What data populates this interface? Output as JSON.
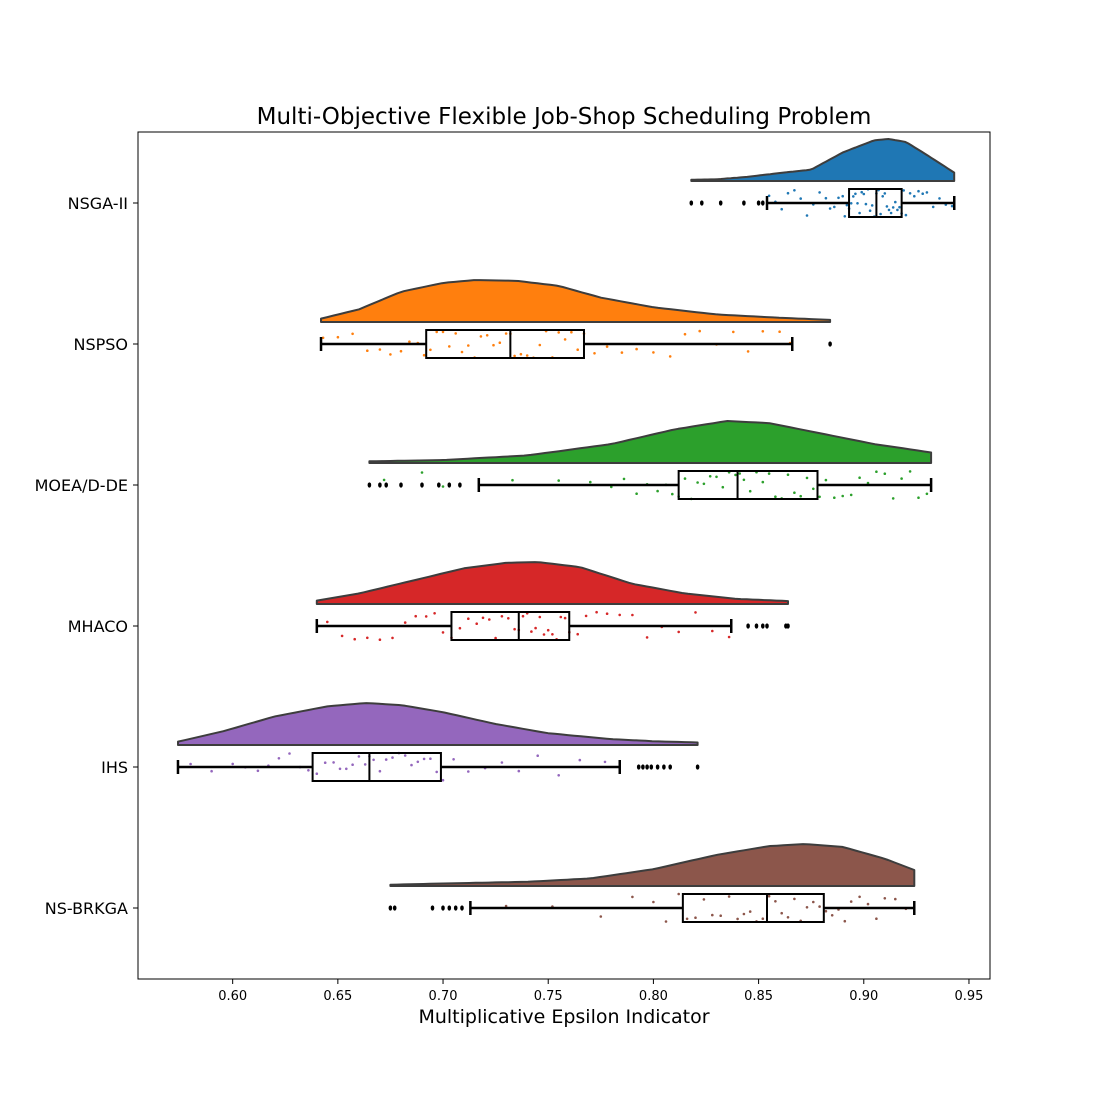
{
  "chart_data": {
    "type": "raincloud",
    "title": "Multi-Objective Flexible Job-Shop Scheduling Problem",
    "xlabel": "Multiplicative Epsilon Indicator",
    "ylabel": "",
    "xlim": [
      0.555,
      0.96
    ],
    "xticks": [
      0.6,
      0.65,
      0.7,
      0.75,
      0.8,
      0.85,
      0.9,
      0.95
    ],
    "xtick_labels": [
      "0.60",
      "0.65",
      "0.70",
      "0.75",
      "0.80",
      "0.85",
      "0.90",
      "0.95"
    ],
    "legend": "none",
    "grid": false,
    "series": [
      {
        "name": "NSGA-II",
        "color": "#1f77b4",
        "box": {
          "whislo": 0.854,
          "q1": 0.893,
          "median": 0.906,
          "q3": 0.918,
          "whishi": 0.943
        },
        "outliers": [
          0.818,
          0.823,
          0.832,
          0.843,
          0.85,
          0.852
        ],
        "kde": {
          "min": 0.818,
          "max": 0.943,
          "curve": [
            [
              0.818,
              0.03
            ],
            [
              0.83,
              0.04
            ],
            [
              0.845,
              0.1
            ],
            [
              0.86,
              0.19
            ],
            [
              0.875,
              0.27
            ],
            [
              0.89,
              0.68
            ],
            [
              0.905,
              0.97
            ],
            [
              0.912,
              1.0
            ],
            [
              0.92,
              0.93
            ],
            [
              0.93,
              0.62
            ],
            [
              0.943,
              0.2
            ]
          ]
        },
        "points": [
          0.855,
          0.858,
          0.861,
          0.864,
          0.867,
          0.87,
          0.873,
          0.876,
          0.879,
          0.882,
          0.884,
          0.886,
          0.888,
          0.89,
          0.891,
          0.892,
          0.893,
          0.894,
          0.895,
          0.896,
          0.897,
          0.898,
          0.899,
          0.9,
          0.901,
          0.902,
          0.903,
          0.904,
          0.905,
          0.906,
          0.906,
          0.907,
          0.908,
          0.909,
          0.91,
          0.911,
          0.912,
          0.913,
          0.914,
          0.915,
          0.916,
          0.917,
          0.918,
          0.919,
          0.92,
          0.922,
          0.924,
          0.926,
          0.928,
          0.93,
          0.933,
          0.936,
          0.939,
          0.942
        ]
      },
      {
        "name": "NSPSO",
        "color": "#ff7f0e",
        "box": {
          "whislo": 0.642,
          "q1": 0.692,
          "median": 0.732,
          "q3": 0.767,
          "whishi": 0.866
        },
        "outliers": [
          0.884
        ],
        "kde": {
          "min": 0.642,
          "max": 0.884,
          "curve": [
            [
              0.642,
              0.08
            ],
            [
              0.66,
              0.3
            ],
            [
              0.68,
              0.72
            ],
            [
              0.7,
              0.93
            ],
            [
              0.715,
              1.0
            ],
            [
              0.735,
              0.98
            ],
            [
              0.755,
              0.86
            ],
            [
              0.775,
              0.58
            ],
            [
              0.8,
              0.35
            ],
            [
              0.83,
              0.18
            ],
            [
              0.86,
              0.1
            ],
            [
              0.884,
              0.05
            ]
          ]
        },
        "points": [
          0.643,
          0.65,
          0.657,
          0.664,
          0.67,
          0.675,
          0.68,
          0.684,
          0.688,
          0.691,
          0.694,
          0.697,
          0.7,
          0.703,
          0.706,
          0.709,
          0.712,
          0.715,
          0.718,
          0.721,
          0.724,
          0.727,
          0.73,
          0.732,
          0.734,
          0.737,
          0.74,
          0.743,
          0.746,
          0.749,
          0.752,
          0.755,
          0.758,
          0.761,
          0.764,
          0.767,
          0.772,
          0.778,
          0.785,
          0.792,
          0.8,
          0.808,
          0.815,
          0.822,
          0.83,
          0.838,
          0.845,
          0.852,
          0.86,
          0.865
        ]
      },
      {
        "name": "MOEA/D-DE",
        "color": "#2ca02c",
        "box": {
          "whislo": 0.717,
          "q1": 0.812,
          "median": 0.84,
          "q3": 0.878,
          "whishi": 0.932
        },
        "outliers": [
          0.665,
          0.67,
          0.673,
          0.68,
          0.69,
          0.698,
          0.703,
          0.708
        ],
        "kde": {
          "min": 0.665,
          "max": 0.932,
          "curve": [
            [
              0.665,
              0.04
            ],
            [
              0.7,
              0.07
            ],
            [
              0.74,
              0.18
            ],
            [
              0.78,
              0.45
            ],
            [
              0.81,
              0.8
            ],
            [
              0.835,
              1.0
            ],
            [
              0.855,
              0.95
            ],
            [
              0.88,
              0.7
            ],
            [
              0.905,
              0.45
            ],
            [
              0.932,
              0.25
            ]
          ]
        },
        "points": [
          0.672,
          0.69,
          0.7,
          0.733,
          0.755,
          0.77,
          0.78,
          0.786,
          0.792,
          0.797,
          0.802,
          0.806,
          0.809,
          0.812,
          0.815,
          0.818,
          0.821,
          0.824,
          0.827,
          0.83,
          0.833,
          0.836,
          0.839,
          0.841,
          0.843,
          0.846,
          0.849,
          0.852,
          0.855,
          0.858,
          0.861,
          0.864,
          0.867,
          0.87,
          0.873,
          0.876,
          0.879,
          0.882,
          0.886,
          0.89,
          0.894,
          0.898,
          0.902,
          0.906,
          0.91,
          0.914,
          0.918,
          0.922,
          0.926,
          0.93
        ]
      },
      {
        "name": "MHACO",
        "color": "#d62728",
        "box": {
          "whislo": 0.64,
          "q1": 0.704,
          "median": 0.736,
          "q3": 0.76,
          "whishi": 0.837
        },
        "outliers": [
          0.845,
          0.849,
          0.852,
          0.854,
          0.863,
          0.864
        ],
        "kde": {
          "min": 0.64,
          "max": 0.864,
          "curve": [
            [
              0.64,
              0.08
            ],
            [
              0.66,
              0.25
            ],
            [
              0.685,
              0.55
            ],
            [
              0.71,
              0.85
            ],
            [
              0.73,
              0.98
            ],
            [
              0.745,
              1.0
            ],
            [
              0.765,
              0.88
            ],
            [
              0.79,
              0.48
            ],
            [
              0.815,
              0.25
            ],
            [
              0.84,
              0.12
            ],
            [
              0.864,
              0.07
            ]
          ]
        },
        "points": [
          0.645,
          0.652,
          0.658,
          0.664,
          0.67,
          0.676,
          0.682,
          0.687,
          0.692,
          0.696,
          0.7,
          0.704,
          0.708,
          0.712,
          0.716,
          0.719,
          0.722,
          0.725,
          0.728,
          0.731,
          0.734,
          0.736,
          0.738,
          0.74,
          0.742,
          0.744,
          0.746,
          0.748,
          0.75,
          0.752,
          0.754,
          0.756,
          0.758,
          0.76,
          0.764,
          0.768,
          0.773,
          0.778,
          0.784,
          0.79,
          0.797,
          0.804,
          0.812,
          0.82,
          0.828,
          0.836
        ]
      },
      {
        "name": "IHS",
        "color": "#9467bd",
        "box": {
          "whislo": 0.574,
          "q1": 0.638,
          "median": 0.665,
          "q3": 0.699,
          "whishi": 0.784
        },
        "outliers": [
          0.793,
          0.795,
          0.797,
          0.799,
          0.802,
          0.805,
          0.808,
          0.821
        ],
        "kde": {
          "min": 0.574,
          "max": 0.821,
          "curve": [
            [
              0.574,
              0.08
            ],
            [
              0.595,
              0.32
            ],
            [
              0.62,
              0.68
            ],
            [
              0.645,
              0.92
            ],
            [
              0.663,
              1.0
            ],
            [
              0.68,
              0.95
            ],
            [
              0.7,
              0.78
            ],
            [
              0.725,
              0.5
            ],
            [
              0.75,
              0.28
            ],
            [
              0.78,
              0.14
            ],
            [
              0.8,
              0.09
            ],
            [
              0.821,
              0.06
            ]
          ]
        },
        "points": [
          0.58,
          0.59,
          0.6,
          0.606,
          0.612,
          0.617,
          0.622,
          0.627,
          0.632,
          0.636,
          0.64,
          0.644,
          0.648,
          0.651,
          0.654,
          0.657,
          0.66,
          0.663,
          0.665,
          0.667,
          0.67,
          0.673,
          0.676,
          0.679,
          0.682,
          0.685,
          0.688,
          0.691,
          0.694,
          0.697,
          0.7,
          0.705,
          0.712,
          0.72,
          0.728,
          0.736,
          0.745,
          0.755,
          0.765,
          0.777
        ]
      },
      {
        "name": "NS-BRKGA",
        "color": "#8c564b",
        "box": {
          "whislo": 0.713,
          "q1": 0.814,
          "median": 0.854,
          "q3": 0.881,
          "whishi": 0.924
        },
        "outliers": [
          0.675,
          0.677,
          0.695,
          0.7,
          0.703,
          0.706,
          0.709
        ],
        "kde": {
          "min": 0.675,
          "max": 0.924,
          "curve": [
            [
              0.675,
              0.03
            ],
            [
              0.7,
              0.06
            ],
            [
              0.74,
              0.1
            ],
            [
              0.77,
              0.18
            ],
            [
              0.8,
              0.4
            ],
            [
              0.83,
              0.74
            ],
            [
              0.855,
              0.95
            ],
            [
              0.872,
              1.0
            ],
            [
              0.89,
              0.93
            ],
            [
              0.91,
              0.65
            ],
            [
              0.924,
              0.38
            ]
          ]
        },
        "points": [
          0.73,
          0.752,
          0.775,
          0.79,
          0.8,
          0.806,
          0.812,
          0.816,
          0.82,
          0.824,
          0.828,
          0.832,
          0.836,
          0.84,
          0.843,
          0.846,
          0.849,
          0.852,
          0.855,
          0.858,
          0.861,
          0.864,
          0.867,
          0.87,
          0.873,
          0.876,
          0.879,
          0.882,
          0.885,
          0.888,
          0.891,
          0.894,
          0.898,
          0.902,
          0.906,
          0.91,
          0.915,
          0.92
        ]
      }
    ]
  }
}
